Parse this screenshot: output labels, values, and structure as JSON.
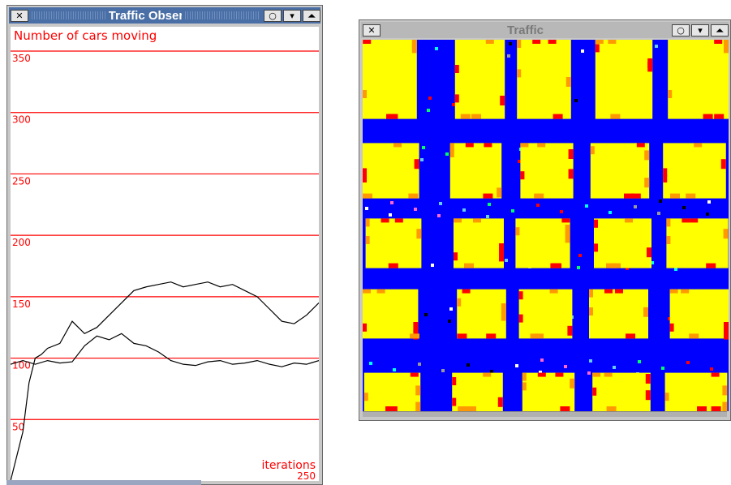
{
  "observer_window": {
    "title": "Traffic Observer",
    "buttons": {
      "close": "✕",
      "iconify": "○",
      "menu": "▾",
      "maximize": "⏶"
    }
  },
  "traffic_window": {
    "title": "Traffic",
    "buttons": {
      "close": "✕",
      "iconify": "○",
      "menu": "▾",
      "maximize": "⏶"
    }
  },
  "chart_data": {
    "type": "line",
    "title": "Number of cars moving",
    "xlabel": "iterations",
    "x_end_label": "250",
    "ylim": [
      0,
      350
    ],
    "y_ticks": [
      "350",
      "300",
      "250",
      "200",
      "150",
      "100",
      "50"
    ],
    "grid": true,
    "colors": {
      "grid": "#ff0000",
      "text": "#ff0000",
      "series": "#000000"
    },
    "series": [
      {
        "x": [
          0,
          10,
          15,
          20,
          25,
          30,
          40,
          50,
          60,
          70,
          80,
          90,
          100,
          110,
          120,
          130,
          140,
          150,
          160,
          170,
          180,
          190,
          200,
          210,
          220,
          230,
          240,
          250
        ],
        "y": [
          0,
          40,
          80,
          100,
          103,
          108,
          112,
          130,
          120,
          125,
          135,
          145,
          155,
          158,
          160,
          162,
          158,
          160,
          162,
          158,
          160,
          155,
          150,
          140,
          130,
          128,
          135,
          145
        ]
      },
      {
        "x": [
          0,
          10,
          20,
          30,
          40,
          50,
          60,
          70,
          80,
          90,
          100,
          110,
          120,
          130,
          140,
          150,
          160,
          170,
          180,
          190,
          200,
          210,
          220,
          230,
          240,
          250
        ],
        "y": [
          95,
          98,
          95,
          98,
          96,
          97,
          110,
          118,
          115,
          120,
          112,
          110,
          105,
          98,
          95,
          94,
          97,
          98,
          95,
          96,
          98,
          95,
          93,
          96,
          95,
          98
        ]
      }
    ]
  },
  "colors": {
    "road": "#0000ff",
    "block": "#ffff00",
    "car_red": "#ff0000",
    "car_orange": "#ff9900"
  }
}
